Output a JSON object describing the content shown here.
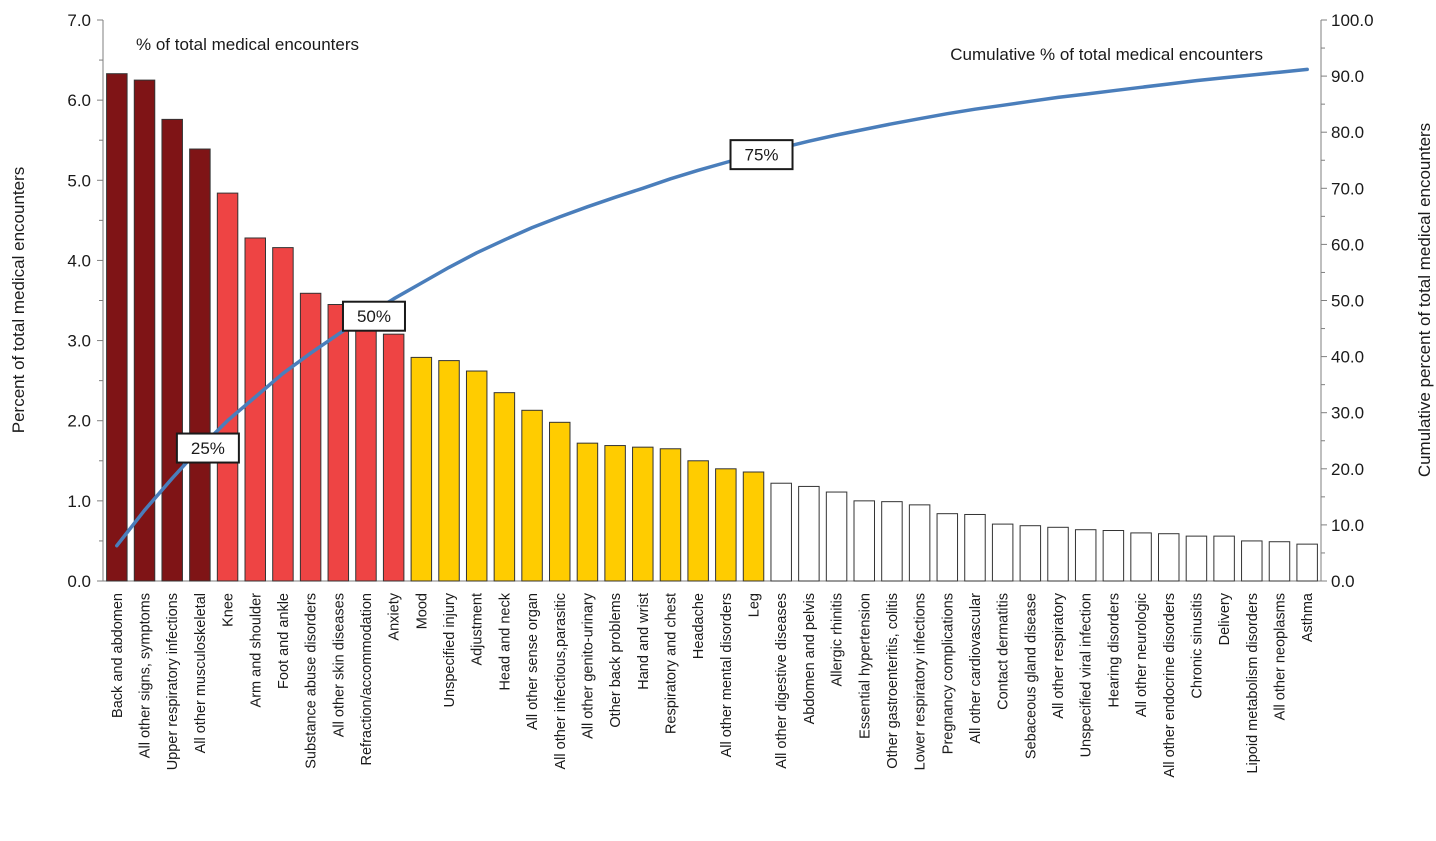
{
  "chart_data": {
    "type": "bar",
    "ylabel": "Percent of total medical encounters",
    "y2label": "Cumulative percent of total medical encounters",
    "annotations": {
      "bars": "% of total medical encounters",
      "cumulative": "Cumulative % of total medical encounters"
    },
    "ylim": [
      0,
      7
    ],
    "y2lim": [
      0,
      100
    ],
    "yticks": [
      "0.0",
      "1.0",
      "2.0",
      "3.0",
      "4.0",
      "5.0",
      "6.0",
      "7.0"
    ],
    "y2ticks": [
      "0.0",
      "10.0",
      "20.0",
      "30.0",
      "40.0",
      "50.0",
      "60.0",
      "70.0",
      "80.0",
      "90.0",
      "100.0"
    ],
    "grid": false,
    "colors": {
      "group1": "#7f1416",
      "group2": "#ee4444",
      "group3": "#ffcc00",
      "group4": "#ffffff",
      "cumulative": "#4a7ebb"
    },
    "categories": [
      "Back and abdomen",
      "All other signs, symptoms",
      "Upper respiratory infections",
      "All other musculoskeletal",
      "Knee",
      "Arm and shoulder",
      "Foot and ankle",
      "Substance abuse disorders",
      "All other skin diseases",
      "Refraction/accommodation",
      "Anxiety",
      "Mood",
      "Unspecified injury",
      "Adjustment",
      "Head and neck",
      "All other sense organ",
      "All other infectious,parasitic",
      "All other genito-urinary",
      "Other back problems",
      "Hand and wrist",
      "Respiratory and chest",
      "Headache",
      "All other mental disorders",
      "Leg",
      "All other digestive diseases",
      "Abdomen and pelvis",
      "Allergic rhinitis",
      "Essential hypertension",
      "Other gastroenteritis, colitis",
      "Lower respiratory infections",
      "Pregnancy complications",
      "All other cardiovascular",
      "Contact dermatitis",
      "Sebaceous gland disease",
      "All other respiratory",
      "Unspecified viral infection",
      "Hearing disorders",
      "All other neurologic",
      "All other endocrine disorders",
      "Chronic sinusitis",
      "Delivery",
      "Lipoid metabolism disorders",
      "All other neoplasms",
      "Asthma"
    ],
    "series": [
      {
        "type": "bar",
        "values": [
          6.33,
          6.25,
          5.76,
          5.39,
          4.84,
          4.28,
          4.16,
          3.59,
          3.45,
          3.21,
          3.08,
          2.79,
          2.75,
          2.62,
          2.35,
          2.13,
          1.98,
          1.72,
          1.69,
          1.67,
          1.65,
          1.5,
          1.4,
          1.36,
          1.22,
          1.18,
          1.11,
          1.0,
          0.99,
          0.95,
          0.84,
          0.83,
          0.71,
          0.69,
          0.67,
          0.64,
          0.63,
          0.6,
          0.59,
          0.56,
          0.56,
          0.5,
          0.49,
          0.46
        ],
        "groups": [
          1,
          1,
          1,
          1,
          2,
          2,
          2,
          2,
          2,
          2,
          2,
          3,
          3,
          3,
          3,
          3,
          3,
          3,
          3,
          3,
          3,
          3,
          3,
          3,
          4,
          4,
          4,
          4,
          4,
          4,
          4,
          4,
          4,
          4,
          4,
          4,
          4,
          4,
          4,
          4,
          4,
          4,
          4,
          4
        ]
      },
      {
        "type": "line",
        "axis": "secondary",
        "values": [
          6.3,
          12.6,
          18.3,
          23.7,
          28.6,
          32.8,
          37.0,
          40.6,
          44.0,
          47.2,
          50.3,
          53.1,
          55.9,
          58.5,
          60.8,
          63.0,
          64.9,
          66.7,
          68.4,
          70.0,
          71.7,
          73.2,
          74.6,
          76.0,
          77.2,
          78.4,
          79.5,
          80.5,
          81.5,
          82.4,
          83.3,
          84.1,
          84.8,
          85.5,
          86.2,
          86.8,
          87.4,
          88.0,
          88.6,
          89.2,
          89.7,
          90.2,
          90.7,
          91.2
        ]
      }
    ],
    "markers": [
      {
        "label": "25%",
        "index": 3
      },
      {
        "label": "50%",
        "index": 9
      },
      {
        "label": "75%",
        "index": 23
      }
    ]
  }
}
